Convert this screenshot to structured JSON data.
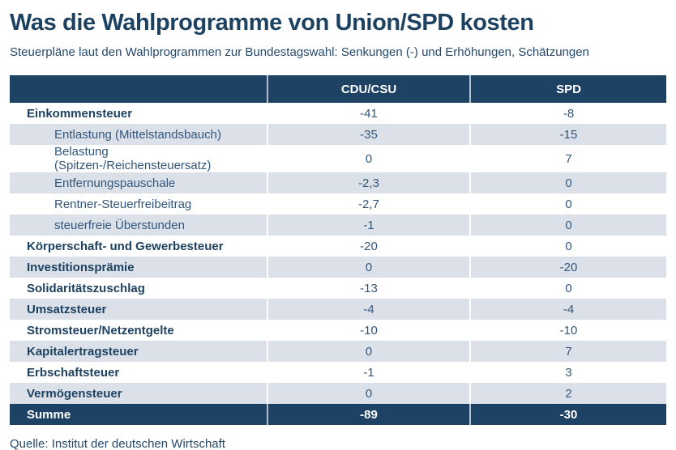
{
  "page": {
    "title": "Was die Wahlprogramme von Union/SPD kosten",
    "subtitle": "Steuerpläne laut den Wahlprogrammen zur Bundestagswahl: Senkungen (-) und Erhöhungen, Schätzungen",
    "source": "Quelle: Institut der deutschen Wirtschaft"
  },
  "colors": {
    "navy": "#1e4263",
    "stripe": "#dce1e9",
    "body_text": "#32577b",
    "header_divider": "#b3c0cd",
    "background": "#ffffff"
  },
  "table": {
    "headers": {
      "label": "",
      "cdu_csu": "CDU/CSU",
      "spd": "SPD"
    },
    "rows": [
      {
        "label": "Einkommensteuer",
        "cdu_csu": "-41",
        "spd": "-8",
        "style": "category"
      },
      {
        "label": "Entlastung (Mittelstandsbauch)",
        "cdu_csu": "-35",
        "spd": "-15",
        "style": "sub"
      },
      {
        "label": "Belastung (Spitzen-/Reichensteuersatz)",
        "cdu_csu": "0",
        "spd": "7",
        "style": "sub"
      },
      {
        "label": "Entfernungspauschale",
        "cdu_csu": "-2,3",
        "spd": "0",
        "style": "sub"
      },
      {
        "label": "Rentner-Steuerfreibeitrag",
        "cdu_csu": "-2,7",
        "spd": "0",
        "style": "sub"
      },
      {
        "label": "steuerfreie Überstunden",
        "cdu_csu": "-1",
        "spd": "0",
        "style": "sub"
      },
      {
        "label": "Körperschaft- und Gewerbesteuer",
        "cdu_csu": "-20",
        "spd": "0",
        "style": "category"
      },
      {
        "label": "Investitionsprämie",
        "cdu_csu": "0",
        "spd": "-20",
        "style": "category"
      },
      {
        "label": "Solidaritätszuschlag",
        "cdu_csu": "-13",
        "spd": "0",
        "style": "category"
      },
      {
        "label": "Umsatzsteuer",
        "cdu_csu": "-4",
        "spd": "-4",
        "style": "category"
      },
      {
        "label": "Stromsteuer/Netzentgelte",
        "cdu_csu": "-10",
        "spd": "-10",
        "style": "category"
      },
      {
        "label": "Kapitalertragsteuer",
        "cdu_csu": "0",
        "spd": "7",
        "style": "category"
      },
      {
        "label": "Erbschaftsteuer",
        "cdu_csu": "-1",
        "spd": "3",
        "style": "category"
      },
      {
        "label": "Vermögensteuer",
        "cdu_csu": "0",
        "spd": "2",
        "style": "category"
      }
    ],
    "total": {
      "label": "Summe",
      "cdu_csu": "-89",
      "spd": "-30"
    }
  },
  "chart_data": {
    "type": "table",
    "title": "Was die Wahlprogramme von Union/SPD kosten",
    "subtitle": "Steuerpläne laut den Wahlprogrammen zur Bundestagswahl: Senkungen (-) und Erhöhungen, Schätzungen",
    "columns": [
      "",
      "CDU/CSU",
      "SPD"
    ],
    "categories": [
      "Einkommensteuer",
      "Entlastung (Mittelstandsbauch)",
      "Belastung (Spitzen-/Reichensteuersatz)",
      "Entfernungspauschale",
      "Rentner-Steuerfreibeitrag",
      "steuerfreie Überstunden",
      "Körperschaft- und Gewerbesteuer",
      "Investitionsprämie",
      "Solidaritätszuschlag",
      "Umsatzsteuer",
      "Stromsteuer/Netzentgelte",
      "Kapitalertragsteuer",
      "Erbschaftsteuer",
      "Vermögensteuer",
      "Summe"
    ],
    "series": [
      {
        "name": "CDU/CSU",
        "values": [
          -41,
          -35,
          0,
          -2.3,
          -2.7,
          -1,
          -20,
          0,
          -13,
          -4,
          -10,
          0,
          -1,
          0,
          -89
        ]
      },
      {
        "name": "SPD",
        "values": [
          -8,
          -15,
          7,
          0,
          0,
          0,
          0,
          -20,
          0,
          -4,
          -10,
          7,
          3,
          2,
          -30
        ]
      }
    ],
    "source": "Quelle: Institut der deutschen Wirtschaft"
  }
}
